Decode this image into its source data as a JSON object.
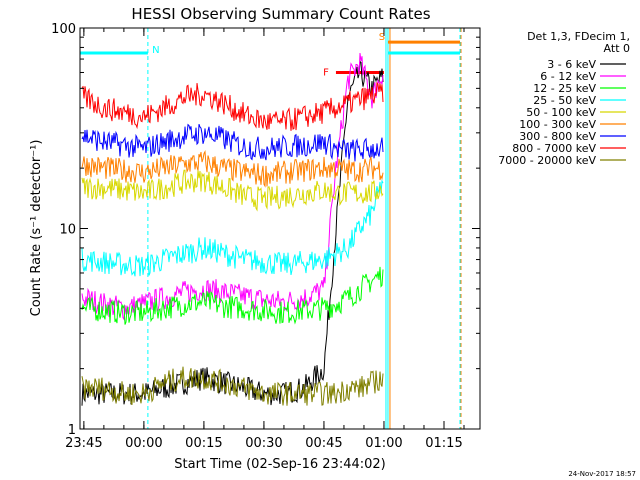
{
  "chart_data": {
    "type": "line",
    "title": "HESSI Observing Summary Count Rates",
    "xlabel": "Start Time (02-Sep-16 23:44:02)",
    "ylabel": "Count Rate (s⁻¹ detector⁻¹)",
    "yscale": "log",
    "ylim": [
      1,
      100
    ],
    "xlim": [
      "23:44:02",
      "01:24:00"
    ],
    "x_ticks": [
      "23:45",
      "00:00",
      "00:15",
      "00:30",
      "00:45",
      "01:00",
      "01:15"
    ],
    "y_ticks": [
      "1",
      "10",
      "100"
    ],
    "legend_header": [
      "Det 1,3, FDecim 1,",
      "Att 0"
    ],
    "legend_position": "right",
    "timestamp": "24-Nov-2017 18:57",
    "x": [
      "23:45",
      "23:50",
      "23:55",
      "00:00",
      "00:05",
      "00:10",
      "00:15",
      "00:20",
      "00:25",
      "00:30",
      "00:35",
      "00:40",
      "00:45",
      "00:48",
      "00:51",
      "00:54",
      "00:57",
      "01:00"
    ],
    "series": [
      {
        "name": "3 - 6 keV",
        "color": "#000000",
        "values": [
          1.5,
          1.5,
          1.5,
          1.5,
          1.6,
          1.7,
          1.8,
          1.7,
          1.6,
          1.5,
          1.5,
          1.6,
          2.0,
          10,
          45,
          60,
          50,
          58
        ]
      },
      {
        "name": "6 - 12 keV",
        "color": "#ff00ff",
        "values": [
          4.5,
          4.2,
          4.0,
          4.2,
          4.5,
          4.8,
          5.0,
          4.8,
          4.6,
          4.4,
          4.3,
          4.5,
          5.0,
          20,
          55,
          68,
          45,
          62
        ]
      },
      {
        "name": "12 - 25 keV",
        "color": "#00ff00",
        "values": [
          4.0,
          3.9,
          3.8,
          3.8,
          4.0,
          4.2,
          4.3,
          4.1,
          4.0,
          3.9,
          3.8,
          3.9,
          4.0,
          4.2,
          4.5,
          5.0,
          5.5,
          6.0
        ]
      },
      {
        "name": "25 - 50 keV",
        "color": "#00ffff",
        "values": [
          7.0,
          6.8,
          6.6,
          6.5,
          7.0,
          7.5,
          8.0,
          7.5,
          7.0,
          6.8,
          6.6,
          6.8,
          7.0,
          7.5,
          8.0,
          10,
          12,
          18
        ]
      },
      {
        "name": "50 - 100 keV",
        "color": "#d8d800",
        "values": [
          16,
          16,
          15.5,
          15,
          16,
          17,
          17.5,
          16,
          14.5,
          14,
          14.5,
          15,
          15.5,
          15,
          15,
          15,
          15,
          16
        ]
      },
      {
        "name": "100 - 300 keV",
        "color": "#ff8000",
        "values": [
          21,
          20,
          19.5,
          19,
          20,
          21,
          21.5,
          20,
          19,
          18.5,
          19,
          19.5,
          20,
          20,
          19.5,
          19.5,
          20,
          20
        ]
      },
      {
        "name": "300 - 800 keV",
        "color": "#0000ff",
        "values": [
          29,
          27,
          26,
          25,
          27,
          29,
          30,
          28,
          25.5,
          25,
          25.5,
          26,
          27,
          25,
          24.5,
          24.5,
          25,
          25
        ]
      },
      {
        "name": "800 - 7000 keV",
        "color": "#ff0000",
        "values": [
          45,
          40,
          38,
          36,
          40,
          45,
          47,
          42,
          37,
          34,
          34,
          36,
          38,
          40,
          42,
          44,
          46,
          48
        ]
      },
      {
        "name": "7000 - 20000 keV",
        "color": "#808000",
        "values": [
          1.6,
          1.6,
          1.5,
          1.5,
          1.7,
          1.8,
          1.8,
          1.7,
          1.6,
          1.5,
          1.5,
          1.5,
          1.5,
          1.5,
          1.6,
          1.6,
          1.7,
          1.8
        ]
      }
    ],
    "annotations": [
      {
        "label": "N",
        "color": "#00ffff",
        "level": 75,
        "from": "23:44:02",
        "to": "00:01:00"
      },
      {
        "label": "F",
        "color": "#ff0000",
        "level": 60,
        "from": "00:48:00",
        "to": "01:00:00"
      },
      {
        "label": "S",
        "color": "#ff8000",
        "level": 85,
        "from": "01:01:00",
        "to": "01:19:00"
      },
      {
        "label": "",
        "color": "#00ffff",
        "level": 75,
        "from": "01:01:00",
        "to": "01:19:00"
      }
    ],
    "vertical_markers": [
      {
        "time": "00:01:00",
        "color": "#00ffff",
        "style": "dashed"
      },
      {
        "time": "01:00:30",
        "color": "#00ffff",
        "style": "solid"
      },
      {
        "time": "01:01:00",
        "color": "#00ffff",
        "style": "solid"
      },
      {
        "time": "01:01:30",
        "color": "#ff8000",
        "style": "solid"
      },
      {
        "time": "01:19:00",
        "color": "#00ffff",
        "style": "dashed"
      },
      {
        "time": "01:19:15",
        "color": "#ff8000",
        "style": "dashed"
      }
    ]
  }
}
